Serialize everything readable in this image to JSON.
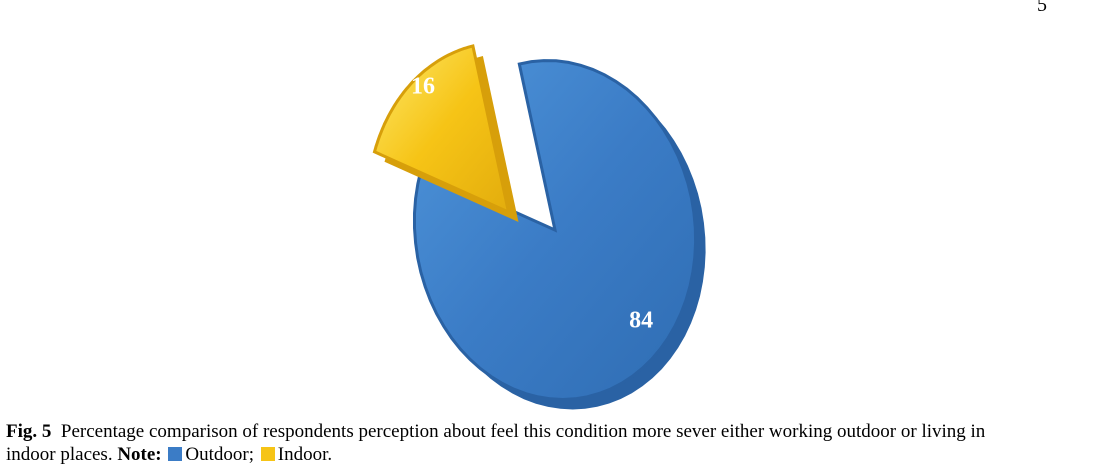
{
  "page_number": "5",
  "chart_data": {
    "type": "pie",
    "categories": [
      "Outdoor",
      "Indoor"
    ],
    "values": [
      84,
      16
    ],
    "data_labels": [
      "84",
      "16"
    ],
    "colors": [
      "#3b7cc6",
      "#f6c416"
    ],
    "style": "3D exploded pie"
  },
  "caption": {
    "fig_label": "Fig. 5",
    "text_line1": "Percentage comparison of respondents perception about feel this condition more sever either working outdoor or living in",
    "text_line2": "indoor places.",
    "note_label": "Note:",
    "legend": [
      {
        "label": "Outdoor;",
        "color": "#3b7cc6"
      },
      {
        "label": "Indoor.",
        "color": "#f6c416"
      }
    ]
  }
}
